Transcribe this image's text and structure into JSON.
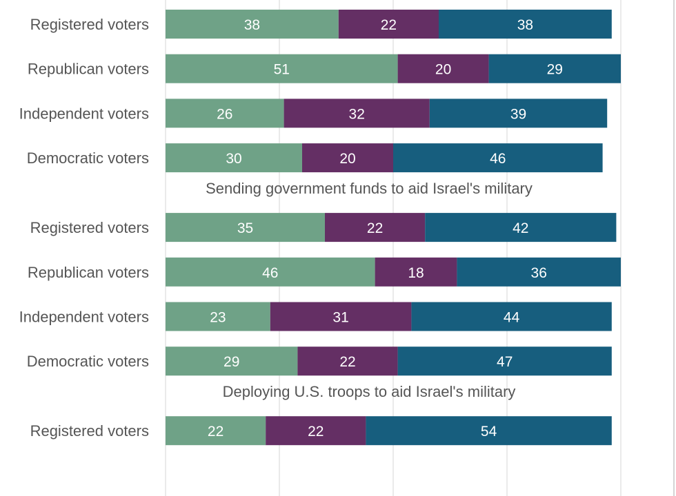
{
  "chart_data": {
    "type": "bar",
    "orientation": "horizontal",
    "stacked": true,
    "grid": true,
    "xlim": [
      0,
      100
    ],
    "colors": [
      "#6fa287",
      "#642f64",
      "#175e7e"
    ],
    "groups": [
      {
        "title": "",
        "rows": [
          {
            "label": "Registered voters",
            "values": [
              38,
              22,
              38
            ]
          },
          {
            "label": "Republican voters",
            "values": [
              51,
              20,
              29
            ]
          },
          {
            "label": "Independent voters",
            "values": [
              26,
              32,
              39
            ]
          },
          {
            "label": "Democratic voters",
            "values": [
              30,
              20,
              46
            ]
          }
        ]
      },
      {
        "title": "Sending government funds to aid Israel's military",
        "rows": [
          {
            "label": "Registered voters",
            "values": [
              35,
              22,
              42
            ]
          },
          {
            "label": "Republican voters",
            "values": [
              46,
              18,
              36
            ]
          },
          {
            "label": "Independent voters",
            "values": [
              23,
              31,
              44
            ]
          },
          {
            "label": "Democratic voters",
            "values": [
              29,
              22,
              47
            ]
          }
        ]
      },
      {
        "title": "Deploying U.S. troops to aid Israel's military",
        "rows": [
          {
            "label": "Registered voters",
            "values": [
              22,
              22,
              54
            ]
          }
        ]
      }
    ]
  }
}
